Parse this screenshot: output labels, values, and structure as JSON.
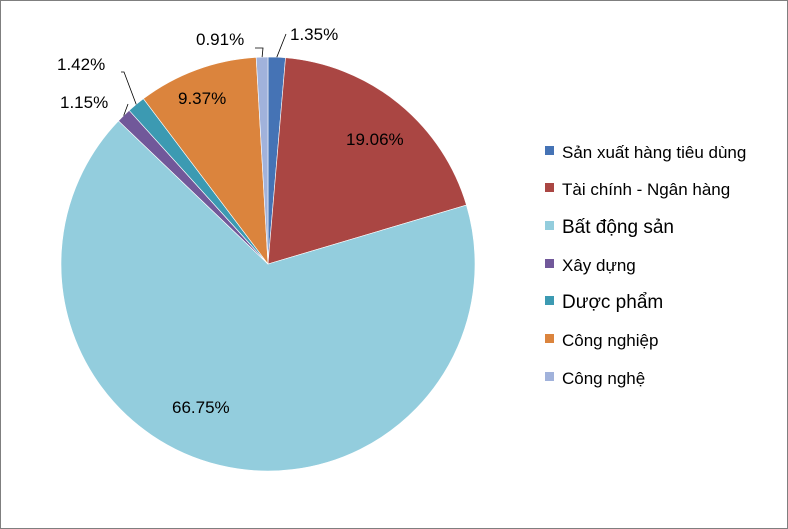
{
  "chart_data": {
    "type": "pie",
    "title": "",
    "legend_position": "right",
    "slices": [
      {
        "label": "Sản xuất hàng tiêu dùng",
        "value": 1.35,
        "value_label": "1.35%",
        "color": "#4573b5"
      },
      {
        "label": "Tài chính - Ngân hàng",
        "value": 19.06,
        "value_label": "19.06%",
        "color": "#aa4643"
      },
      {
        "label": "Bất động sản",
        "value": 66.75,
        "value_label": "66.75%",
        "color": "#93cddd"
      },
      {
        "label": "Xây dựng",
        "value": 1.15,
        "value_label": "1.15%",
        "color": "#71589a"
      },
      {
        "label": "Dược phẩm",
        "value": 1.42,
        "value_label": "1.42%",
        "color": "#3c9ab2"
      },
      {
        "label": "Công nghiệp",
        "value": 9.37,
        "value_label": "9.37%",
        "color": "#db843d"
      },
      {
        "label": "Công nghệ",
        "value": 0.91,
        "value_label": "0.91%",
        "color": "#a1b2db"
      }
    ]
  }
}
